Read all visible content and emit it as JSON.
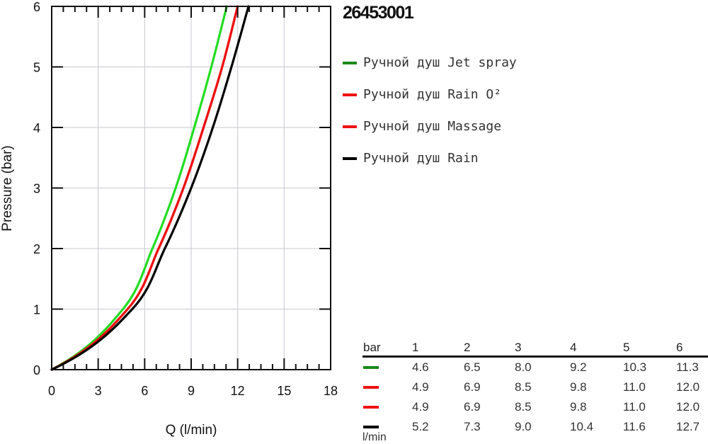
{
  "title": "26453001",
  "colors": {
    "jet": "#22dd22",
    "rain_o2": "#ee1111",
    "massage": "#ee1111",
    "rain": "#000000",
    "legend_green": "#1a8a1a",
    "grid": "#c8c8d0",
    "axis": "#111111"
  },
  "legend": [
    {
      "label": "Ручной душ Jet spray",
      "color": "#1a8a1a"
    },
    {
      "label": "Ручной душ Rain O²",
      "color": "#ee1111"
    },
    {
      "label": "Ручной душ Massage",
      "color": "#ee1111"
    },
    {
      "label": "Ручной душ Rain",
      "color": "#000000"
    }
  ],
  "table": {
    "header": [
      "bar",
      "1",
      "2",
      "3",
      "4",
      "5",
      "6"
    ],
    "rows": [
      {
        "color": "#1a8a1a",
        "values": [
          "4.6",
          "6.5",
          "8.0",
          "9.2",
          "10.3",
          "11.3"
        ]
      },
      {
        "color": "#ee1111",
        "values": [
          "4.9",
          "6.9",
          "8.5",
          "9.8",
          "11.0",
          "12.0"
        ]
      },
      {
        "color": "#ee1111",
        "values": [
          "4.9",
          "6.9",
          "8.5",
          "9.8",
          "11.0",
          "12.0"
        ]
      },
      {
        "color": "#000000",
        "values": [
          "5.2",
          "7.3",
          "9.0",
          "10.4",
          "11.6",
          "12.7"
        ]
      }
    ],
    "unit": "l/min"
  },
  "chart_data": {
    "type": "line",
    "title": "26453001",
    "xlabel": "Q (l/min)",
    "ylabel": "Pressure (bar)",
    "xlim": [
      0,
      18
    ],
    "ylim": [
      0,
      6
    ],
    "xticks": [
      "0",
      "3",
      "6",
      "9",
      "12",
      "15",
      "18"
    ],
    "yticks": [
      "0",
      "1",
      "2",
      "3",
      "4",
      "5",
      "6"
    ],
    "grid": true,
    "legend_position": "right",
    "y_values": [
      0,
      1,
      2,
      3,
      4,
      5,
      6
    ],
    "series": [
      {
        "name": "Ручной душ Jet spray",
        "color": "#22dd22",
        "x": [
          0,
          4.6,
          6.5,
          8.0,
          9.2,
          10.3,
          11.3
        ]
      },
      {
        "name": "Ручной душ Rain O²",
        "color": "#ee1111",
        "x": [
          0,
          4.9,
          6.9,
          8.5,
          9.8,
          11.0,
          12.0
        ]
      },
      {
        "name": "Ручной душ Massage",
        "color": "#ee1111",
        "x": [
          0,
          4.9,
          6.9,
          8.5,
          9.8,
          11.0,
          12.0
        ]
      },
      {
        "name": "Ручной душ Rain",
        "color": "#000000",
        "x": [
          0,
          5.2,
          7.3,
          9.0,
          10.4,
          11.6,
          12.7
        ]
      }
    ]
  }
}
